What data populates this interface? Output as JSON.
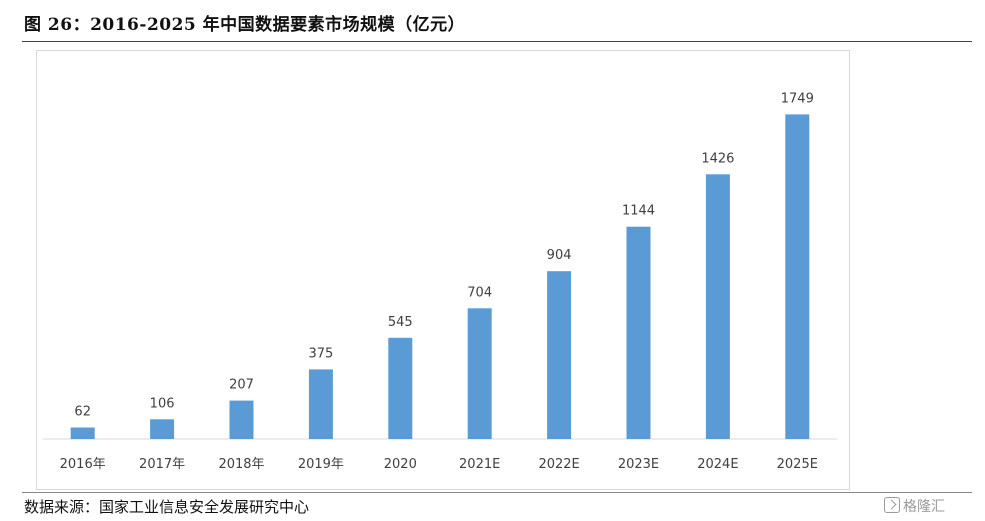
{
  "header": {
    "title": "图 26：2016-2025 年中国数据要素市场规模（亿元）"
  },
  "footer": {
    "source": "数据来源：国家工业信息安全发展研究中心",
    "watermark": "格隆汇"
  },
  "chart_data": {
    "type": "bar",
    "categories": [
      "2016年",
      "2017年",
      "2018年",
      "2019年",
      "2020",
      "2021E",
      "2022E",
      "2023E",
      "2024E",
      "2025E"
    ],
    "values": [
      62,
      106,
      207,
      375,
      545,
      704,
      904,
      1144,
      1426,
      1749
    ],
    "title": "2016-2025 年中国数据要素市场规模（亿元）",
    "xlabel": "",
    "ylabel": "",
    "ylim": [
      0,
      1800
    ],
    "grid": false,
    "legend": "none",
    "bar_color": "#5b9bd5",
    "label_color": "#404040",
    "data_labels": true
  }
}
